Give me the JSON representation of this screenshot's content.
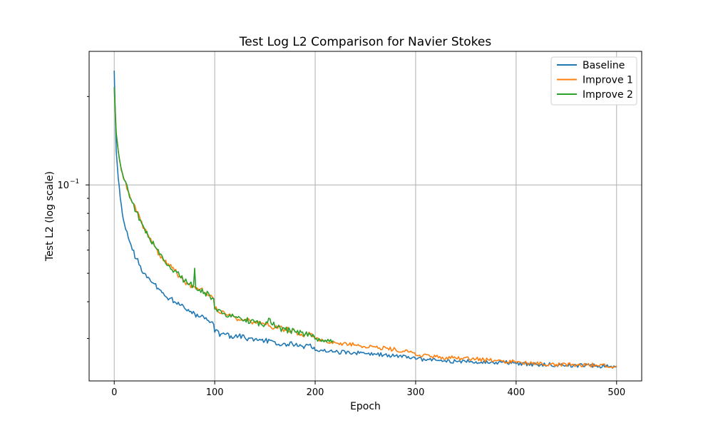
{
  "chart_data": {
    "type": "line",
    "title": "Test Log L2 Comparison for Navier Stokes",
    "xlabel": "Epoch",
    "ylabel": "Test L2 (log scale)",
    "yscale": "log",
    "xlim": [
      -25,
      525
    ],
    "ylim": [
      0.0215,
      0.285
    ],
    "grid": true,
    "legend_position": "top-right",
    "x_ticks": [
      0,
      100,
      200,
      300,
      400,
      500
    ],
    "x_tick_labels": [
      "0",
      "100",
      "200",
      "300",
      "400",
      "500"
    ],
    "y_major_ticks": [
      0.1
    ],
    "y_major_tick_labels": [
      "10"
    ],
    "y_major_tick_exponent": "−1",
    "y_minor_ticks": [
      0.03,
      0.04,
      0.05,
      0.06,
      0.07,
      0.08,
      0.09,
      0.2
    ],
    "series": [
      {
        "name": "Baseline",
        "color": "#1f77b4",
        "x": [
          0,
          2,
          4,
          6,
          8,
          10,
          14,
          18,
          22,
          26,
          30,
          35,
          40,
          45,
          50,
          55,
          60,
          65,
          70,
          75,
          80,
          85,
          90,
          95,
          99,
          100,
          110,
          120,
          130,
          140,
          150,
          160,
          170,
          180,
          190,
          199,
          200,
          220,
          240,
          260,
          280,
          299,
          300,
          320,
          340,
          360,
          380,
          399,
          400,
          420,
          440,
          460,
          480,
          500
        ],
        "y": [
          0.245,
          0.13,
          0.105,
          0.09,
          0.08,
          0.074,
          0.066,
          0.06,
          0.056,
          0.053,
          0.05,
          0.048,
          0.046,
          0.044,
          0.042,
          0.041,
          0.04,
          0.039,
          0.038,
          0.037,
          0.0365,
          0.0355,
          0.035,
          0.034,
          0.0335,
          0.0315,
          0.031,
          0.0305,
          0.0302,
          0.0298,
          0.0295,
          0.0292,
          0.0288,
          0.0285,
          0.0283,
          0.028,
          0.0273,
          0.027,
          0.0268,
          0.0265,
          0.0262,
          0.0259,
          0.0255,
          0.0253,
          0.0251,
          0.025,
          0.0249,
          0.0248,
          0.0246,
          0.0245,
          0.0244,
          0.0243,
          0.0242,
          0.0241
        ]
      },
      {
        "name": "Improve 1",
        "color": "#ff7f0e",
        "x": [
          0,
          2,
          4,
          6,
          8,
          10,
          14,
          18,
          22,
          26,
          30,
          35,
          40,
          45,
          50,
          55,
          60,
          65,
          70,
          75,
          80,
          85,
          90,
          95,
          99,
          100,
          110,
          120,
          130,
          140,
          150,
          160,
          170,
          180,
          190,
          199,
          200,
          220,
          240,
          260,
          280,
          299,
          300,
          320,
          340,
          360,
          380,
          399,
          400,
          420,
          440,
          460,
          480,
          500
        ],
        "y": [
          0.215,
          0.15,
          0.13,
          0.118,
          0.11,
          0.104,
          0.095,
          0.087,
          0.081,
          0.076,
          0.071,
          0.066,
          0.062,
          0.058,
          0.055,
          0.053,
          0.051,
          0.049,
          0.047,
          0.046,
          0.045,
          0.044,
          0.043,
          0.042,
          0.041,
          0.0378,
          0.0365,
          0.0355,
          0.0348,
          0.034,
          0.0334,
          0.0328,
          0.0322,
          0.0316,
          0.031,
          0.0305,
          0.0298,
          0.029,
          0.0285,
          0.028,
          0.0275,
          0.0268,
          0.0263,
          0.026,
          0.0257,
          0.0255,
          0.0252,
          0.025,
          0.0248,
          0.0246,
          0.0245,
          0.0244,
          0.0243,
          0.0242
        ]
      },
      {
        "name": "Improve 2",
        "color": "#2ca02c",
        "x": [
          0,
          2,
          4,
          6,
          8,
          10,
          14,
          18,
          22,
          26,
          30,
          35,
          40,
          45,
          50,
          55,
          60,
          65,
          70,
          75,
          79,
          80,
          81,
          85,
          90,
          95,
          99,
          100,
          110,
          120,
          130,
          140,
          150,
          155,
          160,
          170,
          180,
          190,
          199,
          200,
          210,
          218
        ],
        "y": [
          0.215,
          0.15,
          0.13,
          0.118,
          0.11,
          0.104,
          0.095,
          0.087,
          0.081,
          0.076,
          0.071,
          0.066,
          0.062,
          0.058,
          0.055,
          0.053,
          0.051,
          0.049,
          0.047,
          0.046,
          0.0455,
          0.052,
          0.045,
          0.044,
          0.043,
          0.042,
          0.041,
          0.0378,
          0.0365,
          0.0355,
          0.0348,
          0.034,
          0.0334,
          0.035,
          0.0328,
          0.0322,
          0.0316,
          0.031,
          0.0305,
          0.0298,
          0.0296,
          0.0295
        ]
      }
    ]
  }
}
